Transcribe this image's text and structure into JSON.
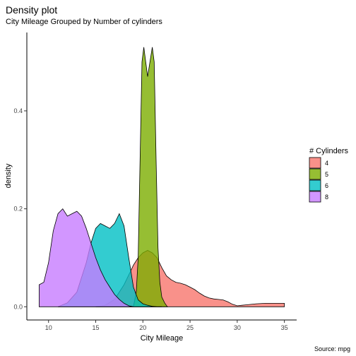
{
  "header": {
    "title": "Density plot",
    "subtitle": "City Mileage Grouped by Number of cylinders",
    "caption": "Source: mpg"
  },
  "chart_data": {
    "type": "area",
    "title": "Density plot",
    "subtitle": "City Mileage Grouped by Number of cylinders",
    "xlabel": "City Mileage",
    "ylabel": "density",
    "xlim": [
      7.7,
      36.3
    ],
    "ylim": [
      -0.027,
      0.56
    ],
    "x_ticks": [
      10,
      15,
      20,
      25,
      30,
      35
    ],
    "y_ticks": [
      0.0,
      0.2,
      0.4
    ],
    "y_tick_labels": [
      "0.0",
      "0.2",
      "0.4"
    ],
    "grid": false,
    "legend": {
      "title": "# Cylinders",
      "position": "right"
    },
    "series": [
      {
        "name": "4",
        "color": "#F8766D",
        "x": [
          15,
          16,
          17,
          18,
          18.5,
          19,
          19.5,
          20,
          20.5,
          21,
          21.5,
          22,
          22.5,
          23,
          23.5,
          24,
          24.5,
          25,
          25.5,
          26,
          26.5,
          27,
          27.5,
          28,
          28.5,
          29,
          29.5,
          30,
          30.5,
          31,
          32,
          33,
          35
        ],
        "y": [
          0.0,
          0.003,
          0.015,
          0.045,
          0.065,
          0.085,
          0.1,
          0.11,
          0.115,
          0.11,
          0.1,
          0.08,
          0.063,
          0.055,
          0.05,
          0.048,
          0.045,
          0.04,
          0.035,
          0.028,
          0.022,
          0.018,
          0.016,
          0.015,
          0.014,
          0.01,
          0.005,
          0.002,
          0.003,
          0.004,
          0.006,
          0.007,
          0.007
        ]
      },
      {
        "name": "5",
        "color": "#7CAE00",
        "x": [
          19.0,
          19.3,
          19.5,
          19.7,
          19.9,
          20.1,
          20.3,
          20.5,
          20.75,
          21.0,
          21.2,
          21.4,
          21.6,
          21.8,
          22.0,
          22.3,
          22.6
        ],
        "y": [
          0.0,
          0.03,
          0.1,
          0.3,
          0.5,
          0.53,
          0.5,
          0.47,
          0.5,
          0.53,
          0.5,
          0.3,
          0.12,
          0.05,
          0.02,
          0.008,
          0.0
        ]
      },
      {
        "name": "6",
        "color": "#00BFC4",
        "x": [
          11,
          12,
          13,
          14,
          14.5,
          15,
          15.5,
          16,
          16.5,
          17,
          17.5,
          18,
          18.5,
          19,
          19.5,
          20,
          20.5,
          21,
          21.5,
          22
        ],
        "y": [
          0.0,
          0.008,
          0.03,
          0.09,
          0.13,
          0.16,
          0.17,
          0.165,
          0.16,
          0.17,
          0.19,
          0.165,
          0.1,
          0.04,
          0.014,
          0.006,
          0.003,
          0.001,
          0.0,
          0.0
        ]
      },
      {
        "name": "8",
        "color": "#C77CFF",
        "x": [
          9,
          9.5,
          10,
          10.5,
          11,
          11.5,
          12,
          12.5,
          13,
          13.5,
          14,
          14.5,
          15,
          15.5,
          16,
          16.5,
          17,
          17.5,
          18,
          18.5,
          19
        ],
        "y": [
          0.045,
          0.05,
          0.09,
          0.155,
          0.19,
          0.2,
          0.185,
          0.19,
          0.195,
          0.185,
          0.16,
          0.13,
          0.1,
          0.075,
          0.055,
          0.04,
          0.025,
          0.015,
          0.007,
          0.002,
          0.0
        ]
      }
    ]
  }
}
